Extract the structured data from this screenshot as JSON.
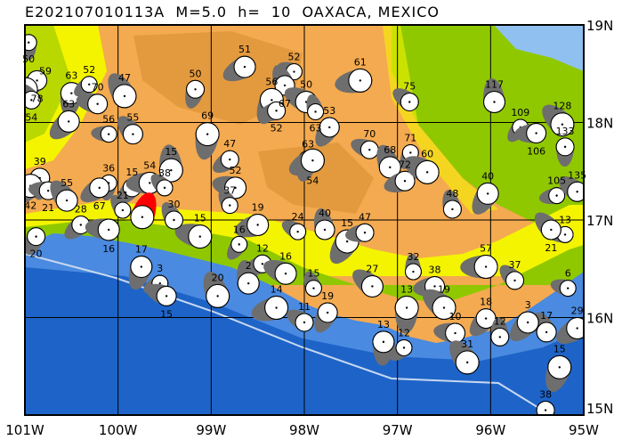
{
  "title": "E202107010113A  M=5.0  h=  10  OAXACA, MEXICO",
  "map": {
    "lon_range": [
      -101,
      -95
    ],
    "lat_range": [
      15,
      19
    ],
    "x_ticks": [
      "101W",
      "100W",
      "99W",
      "98W",
      "97W",
      "96W",
      "95W"
    ],
    "y_ticks": [
      "19N",
      "18N",
      "17N",
      "16N",
      "15N"
    ],
    "colors": {
      "main_event": "#ff0000",
      "mechanism": "#6e6e6e",
      "ocean_deep": "#1a5cc0",
      "ocean_shallow": "#4a8ae0",
      "lowland": "#90c800",
      "mid": "#f4f400",
      "highland": "#f4aa50",
      "gulf": "#90c0f0"
    },
    "main_event": {
      "lon": -99.74,
      "lat": 17.03
    },
    "events": [
      {
        "lon": -100.96,
        "lat": 18.82,
        "d": "50"
      },
      {
        "lon": -100.87,
        "lat": 18.43,
        "d": "78"
      },
      {
        "lon": -100.99,
        "lat": 18.34,
        "d": "59"
      },
      {
        "lon": -100.93,
        "lat": 18.23,
        "d": "54"
      },
      {
        "lon": -100.5,
        "lat": 18.3,
        "d": "63"
      },
      {
        "lon": -100.31,
        "lat": 18.39,
        "d": "52"
      },
      {
        "lon": -100.22,
        "lat": 18.19,
        "d": "70"
      },
      {
        "lon": -99.93,
        "lat": 18.27,
        "d": "47"
      },
      {
        "lon": -99.17,
        "lat": 18.34,
        "d": "50"
      },
      {
        "lon": -98.64,
        "lat": 18.57,
        "d": "51"
      },
      {
        "lon": -98.11,
        "lat": 18.52,
        "d": "52"
      },
      {
        "lon": -98.21,
        "lat": 18.38,
        "d": "67"
      },
      {
        "lon": -98.35,
        "lat": 18.23,
        "d": "56"
      },
      {
        "lon": -98.3,
        "lat": 18.12,
        "d": "52"
      },
      {
        "lon": -97.98,
        "lat": 18.21,
        "d": "50"
      },
      {
        "lon": -97.88,
        "lat": 18.11,
        "d": "63"
      },
      {
        "lon": -97.73,
        "lat": 17.95,
        "d": "53"
      },
      {
        "lon": -97.4,
        "lat": 18.43,
        "d": "61"
      },
      {
        "lon": -96.87,
        "lat": 18.21,
        "d": "75"
      },
      {
        "lon": -95.96,
        "lat": 18.21,
        "d": "117"
      },
      {
        "lon": -95.68,
        "lat": 17.95,
        "d": "109"
      },
      {
        "lon": -95.51,
        "lat": 17.89,
        "d": "106"
      },
      {
        "lon": -95.23,
        "lat": 17.98,
        "d": "128"
      },
      {
        "lon": -95.2,
        "lat": 17.75,
        "d": "133"
      },
      {
        "lon": -100.53,
        "lat": 18.01,
        "d": "63"
      },
      {
        "lon": -100.1,
        "lat": 17.88,
        "d": "56"
      },
      {
        "lon": -99.84,
        "lat": 17.88,
        "d": "55"
      },
      {
        "lon": -99.04,
        "lat": 17.88,
        "d": "69"
      },
      {
        "lon": -98.8,
        "lat": 17.62,
        "d": "47"
      },
      {
        "lon": -98.74,
        "lat": 17.33,
        "d": "52"
      },
      {
        "lon": -98.8,
        "lat": 17.15,
        "d": "37"
      },
      {
        "lon": -97.96,
        "lat": 17.61,
        "d": "63"
      },
      {
        "lon": -97.91,
        "lat": 17.61,
        "d": "54"
      },
      {
        "lon": -97.3,
        "lat": 17.72,
        "d": "70"
      },
      {
        "lon": -97.08,
        "lat": 17.54,
        "d": "68"
      },
      {
        "lon": -96.86,
        "lat": 17.69,
        "d": "71"
      },
      {
        "lon": -96.92,
        "lat": 17.4,
        "d": "72"
      },
      {
        "lon": -96.68,
        "lat": 17.49,
        "d": "60"
      },
      {
        "lon": -96.41,
        "lat": 17.11,
        "d": "48"
      },
      {
        "lon": -96.03,
        "lat": 17.27,
        "d": "40"
      },
      {
        "lon": -95.29,
        "lat": 17.25,
        "d": "105"
      },
      {
        "lon": -95.07,
        "lat": 17.29,
        "d": "135"
      },
      {
        "lon": -99.43,
        "lat": 17.51,
        "d": "15"
      },
      {
        "lon": -99.85,
        "lat": 17.33,
        "d": "15"
      },
      {
        "lon": -99.66,
        "lat": 17.38,
        "d": "54"
      },
      {
        "lon": -99.5,
        "lat": 17.33,
        "d": "38"
      },
      {
        "lon": -100.84,
        "lat": 17.43,
        "d": "39"
      },
      {
        "lon": -100.94,
        "lat": 17.35,
        "d": "42"
      },
      {
        "lon": -100.75,
        "lat": 17.3,
        "d": "21"
      },
      {
        "lon": -100.55,
        "lat": 17.2,
        "d": "55"
      },
      {
        "lon": -100.1,
        "lat": 17.38,
        "d": "36"
      },
      {
        "lon": -100.2,
        "lat": 17.33,
        "d": "67"
      },
      {
        "lon": -99.12,
        "lat": 16.83,
        "d": "15"
      },
      {
        "lon": -99.4,
        "lat": 17.0,
        "d": "30"
      },
      {
        "lon": -99.75,
        "lat": 16.52,
        "d": "17"
      },
      {
        "lon": -99.55,
        "lat": 16.35,
        "d": "3"
      },
      {
        "lon": -99.48,
        "lat": 16.22,
        "d": "15"
      },
      {
        "lon": -98.93,
        "lat": 16.22,
        "d": "20"
      },
      {
        "lon": -100.88,
        "lat": 16.83,
        "d": "20"
      },
      {
        "lon": -98.5,
        "lat": 16.95,
        "d": "19"
      },
      {
        "lon": -98.07,
        "lat": 16.88,
        "d": "24"
      },
      {
        "lon": -97.78,
        "lat": 16.9,
        "d": "40"
      },
      {
        "lon": -97.54,
        "lat": 16.78,
        "d": "15"
      },
      {
        "lon": -97.35,
        "lat": 16.87,
        "d": "47"
      },
      {
        "lon": -97.27,
        "lat": 16.32,
        "d": "27"
      },
      {
        "lon": -96.83,
        "lat": 16.47,
        "d": "32"
      },
      {
        "lon": -96.05,
        "lat": 15.99,
        "d": "18"
      },
      {
        "lon": -96.05,
        "lat": 16.52,
        "d": "57"
      },
      {
        "lon": -95.74,
        "lat": 16.38,
        "d": "37"
      },
      {
        "lon": -97.15,
        "lat": 15.75,
        "d": "13"
      },
      {
        "lon": -96.93,
        "lat": 15.69,
        "d": "12"
      },
      {
        "lon": -96.38,
        "lat": 15.84,
        "d": "10"
      },
      {
        "lon": -96.25,
        "lat": 15.54,
        "d": "31"
      },
      {
        "lon": -95.41,
        "lat": 15.05,
        "d": "38"
      },
      {
        "lon": -95.07,
        "lat": 15.89,
        "d": "29"
      },
      {
        "lon": -95.17,
        "lat": 16.3,
        "d": "6"
      },
      {
        "lon": -95.4,
        "lat": 15.85,
        "d": "17"
      },
      {
        "lon": -95.26,
        "lat": 15.49,
        "d": "15"
      },
      {
        "lon": -98.45,
        "lat": 16.55,
        "d": "12"
      },
      {
        "lon": -98.2,
        "lat": 16.45,
        "d": "16"
      },
      {
        "lon": -97.9,
        "lat": 16.3,
        "d": "15"
      },
      {
        "lon": -97.75,
        "lat": 16.05,
        "d": "19"
      },
      {
        "lon": -98.3,
        "lat": 16.1,
        "d": "14"
      },
      {
        "lon": -98.0,
        "lat": 15.95,
        "d": "11"
      },
      {
        "lon": -98.6,
        "lat": 16.35,
        "d": "2"
      },
      {
        "lon": -98.7,
        "lat": 16.75,
        "d": "16"
      },
      {
        "lon": -96.6,
        "lat": 16.32,
        "d": "38"
      },
      {
        "lon": -96.5,
        "lat": 16.1,
        "d": "19"
      },
      {
        "lon": -95.9,
        "lat": 15.8,
        "d": "12"
      },
      {
        "lon": -95.6,
        "lat": 15.95,
        "d": "3"
      },
      {
        "lon": -95.2,
        "lat": 16.85,
        "d": "13"
      },
      {
        "lon": -95.35,
        "lat": 16.9,
        "d": "21"
      },
      {
        "lon": -96.9,
        "lat": 16.1,
        "d": "13"
      },
      {
        "lon": -100.4,
        "lat": 16.95,
        "d": "28"
      },
      {
        "lon": -100.1,
        "lat": 16.9,
        "d": "16"
      },
      {
        "lon": -99.95,
        "lat": 17.1,
        "d": "21"
      }
    ]
  }
}
